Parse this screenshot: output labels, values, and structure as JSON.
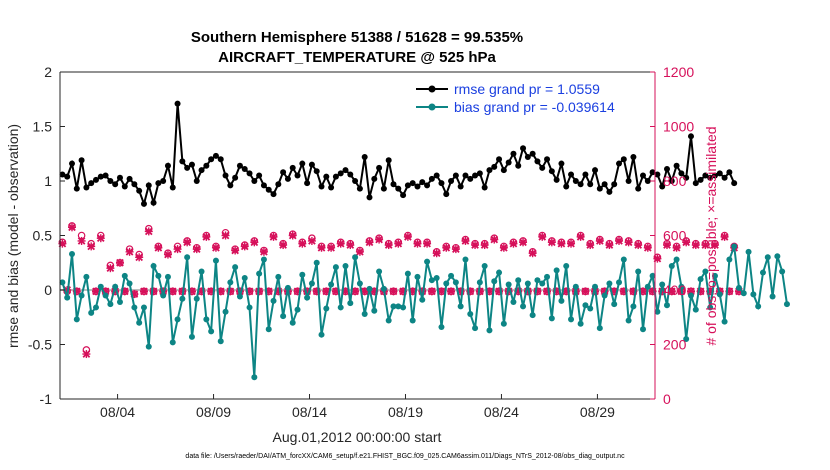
{
  "chart_data": {
    "type": "line",
    "title": "Southern Hemisphere 51388 / 51628 = 99.535%",
    "subtitle": "AIRCRAFT_TEMPERATURE @ 525 hPa",
    "xlabel": "Aug.01,2012 00:00:00 start",
    "ylabel_left": "rmse and bias (model - observation)",
    "ylabel_right": "# of obs: o=possible; ×=assimilated",
    "footer": "data file: /Users/raeder/DAI/ATM_forcXX/CAM6_setup/f.e21.FHIST_BGC.f09_025.CAM6assim.011/Diags_NTrS_2012-08/obs_diag_output.nc",
    "xlim": [
      0.5,
      31.5
    ],
    "ylim_left": [
      -1,
      2
    ],
    "ylim_right": [
      0,
      1200
    ],
    "yticks_left": [
      -1,
      -0.5,
      0,
      0.5,
      1,
      1.5,
      2
    ],
    "ytick_labels_left": [
      "-1",
      "-0.5",
      "0",
      "0.5",
      "1",
      "1.5",
      "2"
    ],
    "yticks_right": [
      0,
      200,
      400,
      600,
      800,
      1000,
      1200
    ],
    "xticks": [
      3.5,
      8.5,
      13.5,
      18.5,
      23.5,
      28.5
    ],
    "xtick_labels": [
      "08/04",
      "08/09",
      "08/14",
      "08/19",
      "08/24",
      "08/29"
    ],
    "legend_position": "top-right",
    "colors": {
      "rmse": "#000000",
      "bias": "#0d8585",
      "obs": "#d6105a",
      "zero_line": "#bdbdbd",
      "legend_text": "#1a3fe0"
    },
    "series": [
      {
        "name": "rmse grand pr = 1.0559",
        "axis": "left",
        "color": "#000000",
        "x0": 0.625,
        "dx": 0.25,
        "values": [
          1.06,
          1.04,
          1.16,
          0.93,
          1.19,
          0.94,
          0.98,
          1.01,
          1.04,
          1.05,
          1.0,
          0.97,
          1.03,
          0.95,
          1.02,
          0.97,
          0.91,
          0.79,
          0.96,
          0.8,
          0.98,
          1.0,
          1.14,
          0.94,
          1.71,
          1.18,
          1.12,
          1.15,
          1.0,
          1.1,
          1.14,
          1.2,
          1.23,
          1.2,
          1.05,
          0.96,
          1.03,
          1.14,
          1.11,
          1.07,
          1.0,
          1.05,
          0.96,
          0.92,
          0.88,
          0.97,
          1.08,
          1.02,
          1.12,
          1.05,
          1.16,
          0.98,
          1.15,
          1.09,
          0.95,
          1.04,
          0.94,
          1.04,
          1.07,
          1.1,
          1.06,
          1.0,
          0.93,
          1.22,
          0.85,
          1.02,
          1.12,
          0.93,
          1.19,
          0.97,
          0.93,
          0.87,
          0.96,
          0.98,
          0.95,
          0.99,
          0.96,
          1.02,
          1.05,
          0.98,
          0.88,
          1.0,
          1.05,
          0.95,
          1.05,
          1.02,
          1.05,
          1.07,
          0.94,
          1.1,
          1.13,
          1.2,
          1.1,
          1.17,
          1.25,
          1.14,
          1.3,
          1.22,
          1.25,
          1.18,
          1.12,
          1.2,
          1.09,
          1.01,
          1.16,
          0.95,
          1.06,
          1.0,
          0.97,
          1.06,
          0.97,
          1.1,
          0.93,
          0.97,
          0.9,
          0.97,
          1.16,
          1.2,
          1.0,
          1.22,
          0.93,
          1.05,
          1.0,
          1.08,
          1.06,
          0.95,
          1.11,
          1.0,
          1.14,
          1.07,
          1.03,
          1.41,
          0.98,
          1.01,
          1.05,
          1.03,
          1.05,
          1.07,
          1.03,
          1.08,
          0.98
        ]
      },
      {
        "name": "bias grand pr = -0.039614",
        "axis": "left",
        "color": "#0d8585",
        "x0": 0.625,
        "dx": 0.25,
        "values": [
          0.07,
          -0.07,
          0.33,
          -0.27,
          -0.05,
          0.12,
          -0.21,
          -0.16,
          0.03,
          -0.05,
          -0.13,
          0.03,
          -0.11,
          0.13,
          0.06,
          -0.16,
          -0.3,
          -0.16,
          -0.52,
          0.22,
          0.13,
          -0.05,
          0.12,
          -0.48,
          -0.27,
          -0.08,
          0.3,
          -0.43,
          -0.08,
          0.17,
          -0.27,
          -0.38,
          0.27,
          -0.47,
          -0.2,
          0.07,
          0.21,
          -0.06,
          0.11,
          -0.16,
          -0.8,
          0.15,
          0.28,
          -0.36,
          -0.1,
          0.12,
          -0.24,
          0.02,
          -0.3,
          -0.18,
          0.14,
          -0.07,
          0.06,
          0.25,
          -0.41,
          -0.17,
          0.05,
          0.21,
          -0.16,
          0.22,
          -0.12,
          0.3,
          0.06,
          -0.22,
          0.01,
          -0.19,
          0.17,
          0.01,
          -0.28,
          -0.15,
          -0.15,
          -0.16,
          0.15,
          -0.28,
          0.12,
          -0.09,
          0.26,
          0.09,
          0.11,
          -0.34,
          0.06,
          0.13,
          0.07,
          -0.15,
          0.28,
          -0.22,
          -0.35,
          0.07,
          0.22,
          -0.37,
          0.08,
          0.16,
          -0.31,
          0.05,
          -0.11,
          0.09,
          -0.15,
          0.06,
          -0.23,
          0.09,
          0.06,
          0.12,
          -0.26,
          0.18,
          -0.1,
          0.22,
          -0.27,
          0.03,
          -0.31,
          -0.14,
          -0.17,
          0.03,
          -0.35,
          -0.05,
          0.06,
          -0.13,
          0.07,
          0.28,
          -0.28,
          -0.15,
          0.17,
          -0.36,
          0.03,
          0.13,
          -0.2,
          0.05,
          -0.14,
          0.22,
          0.28,
          0.03,
          -0.45,
          -0.05,
          -0.18,
          0.1,
          0.17,
          -0.16,
          0.13,
          -0.04,
          -0.29,
          0.28,
          0.4,
          0.02,
          -0.03,
          0.35,
          -0.04,
          -0.15,
          0.16,
          0.3,
          -0.06,
          0.31,
          0.17,
          -0.13
        ]
      },
      {
        "name": "obs possible",
        "axis": "right",
        "color": "#d6105a",
        "marker": "circle",
        "x0": 0.625,
        "dx": 0.25,
        "values": [
          575,
          395,
          635,
          395,
          600,
          180,
          570,
          395,
          600,
          395,
          490,
          395,
          500,
          395,
          550,
          385,
          530,
          395,
          625,
          395,
          560,
          395,
          535,
          395,
          560,
          395,
          580,
          395,
          555,
          395,
          600,
          395,
          560,
          395,
          610,
          395,
          550,
          395,
          565,
          395,
          580,
          395,
          545,
          395,
          600,
          395,
          570,
          395,
          605,
          395,
          575,
          395,
          590,
          395,
          560,
          395,
          560,
          395,
          575,
          395,
          570,
          395,
          545,
          395,
          580,
          395,
          590,
          395,
          570,
          395,
          575,
          395,
          600,
          395,
          575,
          395,
          575,
          395,
          540,
          395,
          560,
          395,
          555,
          395,
          585,
          395,
          570,
          395,
          570,
          395,
          590,
          395,
          560,
          395,
          575,
          395,
          580,
          395,
          540,
          395,
          600,
          395,
          580,
          395,
          575,
          395,
          575,
          395,
          600,
          395,
          570,
          395,
          585,
          395,
          570,
          395,
          585,
          395,
          580,
          395,
          570,
          395,
          560,
          395,
          520,
          395,
          570,
          395,
          560,
          395,
          580,
          395,
          570,
          395,
          570,
          395,
          570,
          395,
          600,
          395,
          560,
          395
        ]
      },
      {
        "name": "obs assimilated",
        "axis": "right",
        "color": "#d6105a",
        "marker": "x",
        "x0": 0.625,
        "dx": 0.25,
        "values": [
          570,
          400,
          630,
          395,
          580,
          165,
          560,
          395,
          590,
          395,
          480,
          395,
          500,
          395,
          540,
          385,
          520,
          395,
          615,
          395,
          555,
          395,
          530,
          395,
          550,
          395,
          575,
          395,
          550,
          395,
          595,
          395,
          555,
          395,
          600,
          395,
          545,
          395,
          560,
          395,
          575,
          395,
          540,
          395,
          595,
          395,
          565,
          395,
          600,
          395,
          570,
          395,
          580,
          395,
          555,
          395,
          555,
          395,
          570,
          395,
          565,
          395,
          540,
          395,
          575,
          395,
          585,
          395,
          565,
          395,
          570,
          395,
          595,
          395,
          570,
          395,
          570,
          395,
          535,
          395,
          555,
          395,
          550,
          395,
          580,
          395,
          565,
          395,
          565,
          395,
          585,
          395,
          555,
          395,
          570,
          395,
          575,
          395,
          535,
          395,
          595,
          395,
          575,
          395,
          570,
          395,
          570,
          395,
          595,
          395,
          565,
          395,
          580,
          395,
          565,
          395,
          580,
          395,
          575,
          395,
          565,
          395,
          555,
          395,
          515,
          395,
          565,
          395,
          555,
          395,
          575,
          395,
          565,
          395,
          565,
          395,
          565,
          395,
          595,
          395,
          555,
          395
        ]
      }
    ]
  }
}
